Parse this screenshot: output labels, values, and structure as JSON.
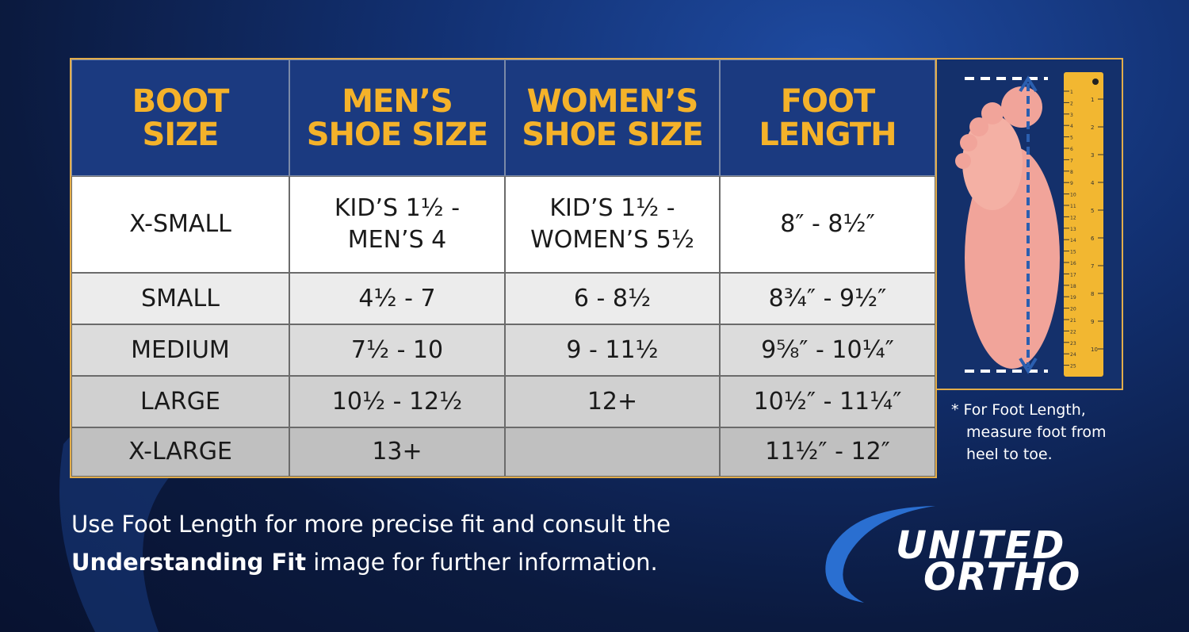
{
  "header": [
    [
      "BOOT",
      "SIZE"
    ],
    [
      "MEN’S",
      "SHOE SIZE"
    ],
    [
      "WOMEN’S",
      "SHOE SIZE"
    ],
    [
      "FOOT",
      "LENGTH"
    ]
  ],
  "table": {
    "rows": [
      [
        "X-SMALL",
        "KID’S 1½ - MEN’S 4",
        "KID’S 1½ - WOMEN’S 5½",
        "8″ - 8½″"
      ],
      [
        "SMALL",
        "4½ - 7",
        "6 - 8½",
        "8¾″ - 9½″"
      ],
      [
        "MEDIUM",
        "7½ - 10",
        "9 - 11½",
        "9⅝″ - 10¼″"
      ],
      [
        "LARGE",
        "10½ - 12½",
        "12+",
        "10½″ - 11¼″"
      ],
      [
        "X-LARGE",
        "13+",
        null,
        "11½″ - 12″"
      ]
    ]
  },
  "ruler": {
    "top": "0",
    "cm": [
      "1",
      "2",
      "3",
      "4",
      "5",
      "6",
      "7",
      "8",
      "9",
      "10",
      "11",
      "12",
      "13",
      "14",
      "15",
      "16",
      "17",
      "18",
      "19",
      "20",
      "21",
      "22",
      "23",
      "24",
      "25"
    ],
    "inch": [
      "1",
      "2",
      "3",
      "4",
      "5",
      "6",
      "7",
      "8",
      "9",
      "10"
    ]
  },
  "note": [
    "* For Foot Length,",
    "measure foot from",
    "heel to toe."
  ],
  "footer": {
    "before": "Use Foot Length for more precise fit and consult the",
    "bold": "Understanding Fit",
    "after": "image for further information."
  },
  "logo": [
    "UNITED",
    "ORTHO"
  ]
}
